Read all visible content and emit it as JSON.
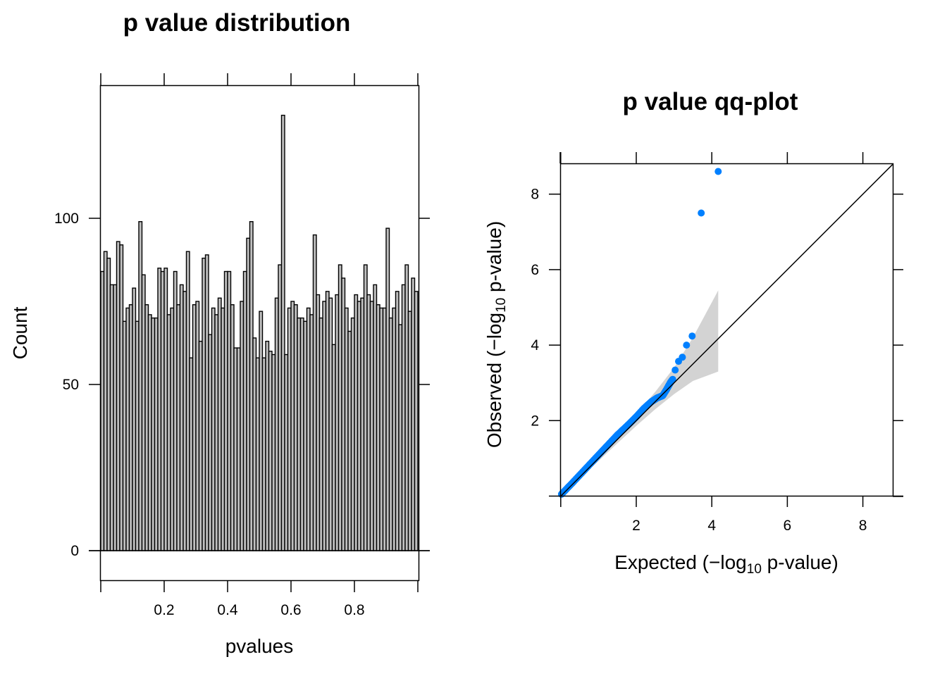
{
  "chart_data": [
    {
      "type": "bar",
      "title": "p value distribution",
      "xlabel": "pvalues",
      "ylabel": "Count",
      "xlim": [
        0,
        1
      ],
      "ylim": [
        -9,
        140
      ],
      "x_ticks": [
        0.2,
        0.4,
        0.6,
        0.8
      ],
      "x_tick_labels": [
        "0.2",
        "0.4",
        "0.6",
        "0.8"
      ],
      "y_ticks": [
        0,
        50,
        100
      ],
      "y_tick_labels": [
        "0",
        "50",
        "100"
      ],
      "bin_width": 0.01,
      "bar_fill": "#bfbfbf",
      "values": [
        84,
        90,
        88,
        80,
        80,
        93,
        92,
        69,
        73,
        74,
        79,
        69,
        99,
        83,
        74,
        71,
        70,
        70,
        85,
        84,
        85,
        71,
        73,
        84,
        74,
        80,
        78,
        90,
        58,
        74,
        75,
        63,
        88,
        89,
        65,
        73,
        71,
        76,
        73,
        84,
        84,
        74,
        61,
        61,
        75,
        84,
        94,
        99,
        64,
        58,
        72,
        58,
        63,
        60,
        59,
        76,
        86,
        131,
        59,
        73,
        75,
        74,
        70,
        70,
        69,
        73,
        71,
        95,
        77,
        70,
        75,
        78,
        76,
        62,
        77,
        86,
        82,
        73,
        66,
        70,
        77,
        75,
        76,
        86,
        77,
        75,
        80,
        74,
        73,
        73,
        97,
        70,
        73,
        78,
        68,
        80,
        86,
        72,
        82,
        78
      ],
      "grid": false
    },
    {
      "type": "scatter",
      "title": "p value qq-plot",
      "xlabel_parts": [
        "Expected (",
        "−",
        "log",
        "10",
        " p-value)"
      ],
      "ylabel_parts": [
        "Observed (",
        "−",
        "log",
        "10",
        " p-value)"
      ],
      "xlim": [
        0,
        8.8
      ],
      "ylim": [
        0,
        8.8
      ],
      "x_ticks": [
        2,
        4,
        6,
        8
      ],
      "x_tick_labels": [
        "2",
        "4",
        "6",
        "8"
      ],
      "y_ticks": [
        2,
        4,
        6,
        8
      ],
      "y_tick_labels": [
        "2",
        "4",
        "6",
        "8"
      ],
      "point_color": "#0080ff",
      "band_color": "#d3d3d3",
      "reference_line": {
        "from": [
          0,
          0
        ],
        "to": [
          8.8,
          8.8
        ]
      },
      "confidence_band": {
        "x": [
          0.0,
          0.5,
          1.0,
          1.5,
          2.0,
          2.5,
          3.0,
          3.5,
          4.17
        ],
        "upper": [
          0.05,
          0.55,
          1.08,
          1.62,
          2.18,
          2.76,
          3.4,
          4.2,
          5.45
        ],
        "lower": [
          0.0,
          0.46,
          0.93,
          1.4,
          1.86,
          2.3,
          2.7,
          3.05,
          3.3
        ]
      },
      "points_curve": {
        "x": [
          0.02,
          0.3,
          0.6,
          0.9,
          1.2,
          1.5,
          1.8,
          2.0,
          2.2,
          2.4,
          2.55,
          2.7,
          2.8,
          2.9,
          2.97
        ],
        "y": [
          0.05,
          0.34,
          0.66,
          0.98,
          1.3,
          1.62,
          1.9,
          2.1,
          2.32,
          2.5,
          2.6,
          2.66,
          2.82,
          3.0,
          3.1
        ]
      },
      "points_outliers": {
        "x": [
          3.03,
          3.12,
          3.22,
          3.33,
          3.48,
          3.72,
          4.17
        ],
        "y": [
          3.34,
          3.57,
          3.68,
          4.0,
          4.24,
          7.5,
          8.6
        ]
      },
      "grid": false
    }
  ]
}
